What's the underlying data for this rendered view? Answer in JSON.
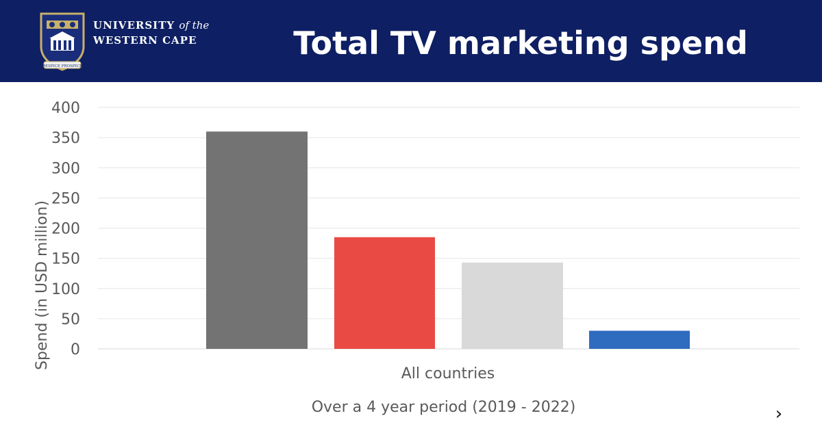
{
  "header": {
    "university_line1": "UNIVERSITY",
    "university_of_the": "of the",
    "university_line2": "WESTERN CAPE",
    "crest_motto": "RESPICE PROSPICE",
    "title": "Total TV marketing spend",
    "colors": {
      "band": "#0e1f63",
      "text": "#ffffff"
    }
  },
  "chart_data": {
    "type": "bar",
    "categories": [
      "All countries"
    ],
    "series": [
      {
        "values": [
          360
        ],
        "color": "#737373"
      },
      {
        "values": [
          185
        ],
        "color": "#ea4a44"
      },
      {
        "values": [
          143
        ],
        "color": "#d9d9d9"
      },
      {
        "values": [
          30
        ],
        "color": "#2f6bbf"
      }
    ],
    "ylabel": "Spend (in USD million)",
    "xlabel": "All countries",
    "ylim": [
      0,
      400
    ],
    "yticks": [
      0,
      50,
      100,
      150,
      200,
      250,
      300,
      350,
      400
    ],
    "grid": true,
    "legend": "none"
  },
  "footer": {
    "note": "Over a 4 year period (2019 - 2022)",
    "next_icon": "chevron-right-icon",
    "next_glyph": "›"
  }
}
